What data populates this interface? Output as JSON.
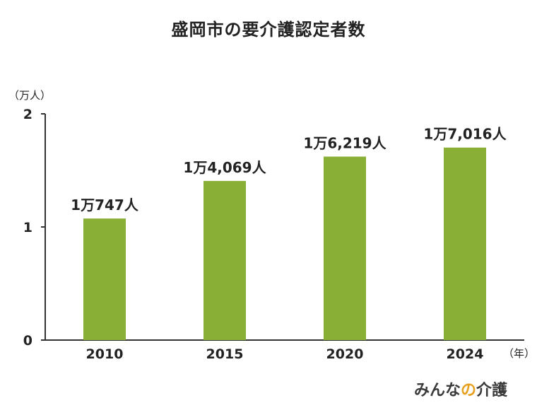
{
  "chart_data": {
    "type": "bar",
    "title": "盛岡市の要介護認定者数",
    "y_unit": "（万人）",
    "x_unit": "（年）",
    "categories": [
      "2010",
      "2015",
      "2020",
      "2024"
    ],
    "values": [
      10747,
      14069,
      16219,
      17016
    ],
    "value_labels": [
      "1万747人",
      "1万4,069人",
      "1万6,219人",
      "1万7,016人"
    ],
    "y_ticks": [
      "0",
      "1",
      "2"
    ],
    "ylim": [
      0,
      20000
    ],
    "bar_color": "#8aaf36",
    "grid": false
  },
  "logo": {
    "part1": "みんな",
    "part2": "の",
    "part3": "介護"
  }
}
